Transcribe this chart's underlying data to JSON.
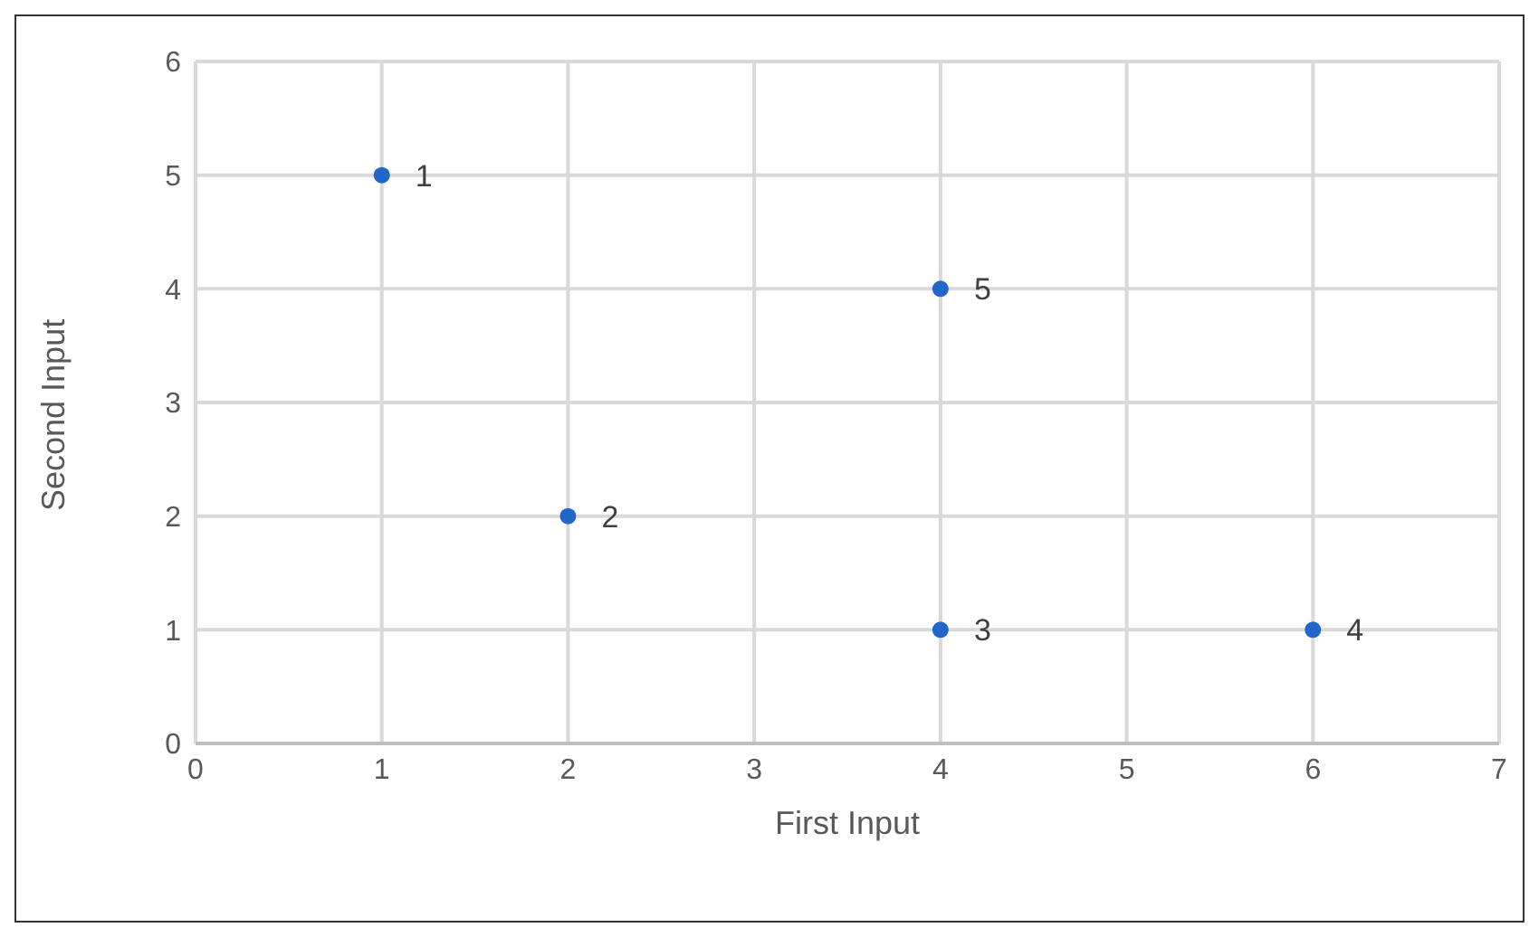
{
  "chart_data": {
    "type": "scatter",
    "xlabel": "First Input",
    "ylabel": "Second Input",
    "x": [
      1,
      2,
      4,
      6,
      4
    ],
    "values": [
      5,
      2,
      1,
      1,
      4
    ],
    "annotations": [
      {
        "text": "1",
        "x": 1,
        "y": 5
      },
      {
        "text": "2",
        "x": 2,
        "y": 2
      },
      {
        "text": "3",
        "x": 4,
        "y": 1
      },
      {
        "text": "4",
        "x": 6,
        "y": 1
      },
      {
        "text": "5",
        "x": 4,
        "y": 4
      }
    ],
    "color": "#2166c8",
    "xlim": [
      0,
      7
    ],
    "xticks": [
      0,
      1,
      2,
      3,
      4,
      5,
      6,
      7
    ],
    "ylim": [
      0,
      6
    ],
    "yticks": [
      0,
      1,
      2,
      3,
      4,
      5,
      6
    ],
    "grid": true,
    "legend": false,
    "marker": "circle"
  }
}
